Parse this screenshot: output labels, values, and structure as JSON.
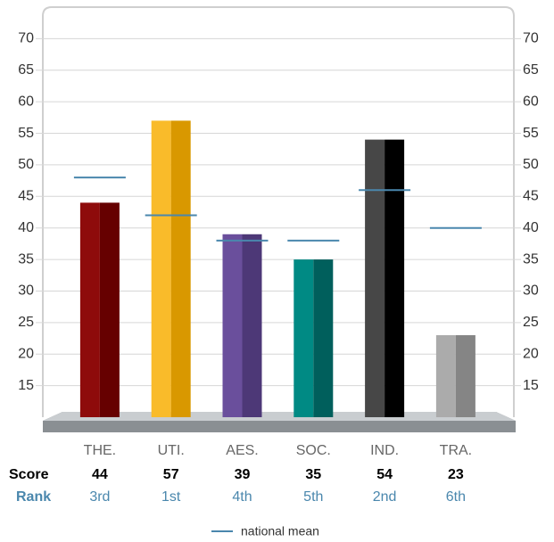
{
  "chart_data": {
    "type": "bar",
    "categories": [
      "THE.",
      "UTI.",
      "AES.",
      "SOC.",
      "IND.",
      "TRA."
    ],
    "values": [
      44,
      57,
      39,
      35,
      54,
      23
    ],
    "colors": [
      [
        "#8e0b0b",
        "#660000"
      ],
      [
        "#f9bb2a",
        "#d99800"
      ],
      [
        "#6a4f9c",
        "#4d3877"
      ],
      [
        "#008a84",
        "#005f5c"
      ],
      [
        "#474747",
        "#000000"
      ],
      [
        "#ababab",
        "#858585"
      ]
    ],
    "score_label": "Score",
    "rank_label": "Rank",
    "ranks": [
      "3rd",
      "1st",
      "4th",
      "5th",
      "2nd",
      "6th"
    ],
    "mean": {
      "name": "national mean",
      "color": "#4a87ad",
      "values": [
        48,
        42,
        38,
        38,
        46,
        40
      ]
    },
    "ylim": [
      10,
      75
    ],
    "yticks": [
      15,
      20,
      25,
      30,
      35,
      40,
      45,
      50,
      55,
      60,
      65,
      70
    ],
    "grid": true
  }
}
